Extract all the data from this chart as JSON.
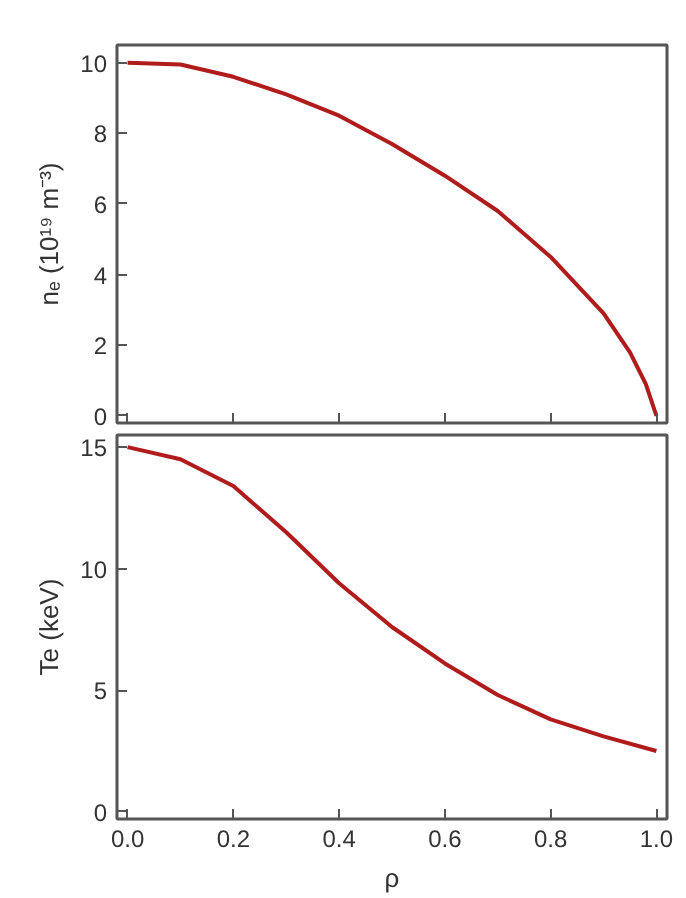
{
  "chart_data": [
    {
      "type": "line",
      "ylabel": "nₑ (10¹⁹ m⁻³)",
      "x": [
        0,
        0.1,
        0.2,
        0.3,
        0.4,
        0.5,
        0.6,
        0.7,
        0.8,
        0.9,
        0.95,
        0.98,
        1.0
      ],
      "series": [
        {
          "color": "#b01c1c",
          "values": [
            10,
            9.95,
            9.6,
            9.1,
            8.5,
            7.7,
            6.8,
            5.8,
            4.5,
            2.9,
            1.8,
            0.9,
            0
          ]
        }
      ],
      "xlim": [
        -0.02,
        1.02
      ],
      "xticks": [
        0,
        0.2,
        0.4,
        0.6,
        0.8,
        1.0
      ],
      "ylim": [
        -0.2,
        10.5
      ],
      "yticks": [
        0,
        2,
        4,
        6,
        8,
        10
      ],
      "tick_labels": "y",
      "grid": false
    },
    {
      "type": "line",
      "xlabel": "ρ",
      "ylabel": "Te (keV)",
      "x": [
        0,
        0.1,
        0.2,
        0.3,
        0.4,
        0.5,
        0.6,
        0.7,
        0.8,
        0.9,
        1.0
      ],
      "series": [
        {
          "color": "#b01c1c",
          "values": [
            15,
            14.5,
            13.4,
            11.5,
            9.4,
            7.6,
            6.1,
            4.8,
            3.8,
            3.1,
            2.5
          ]
        }
      ],
      "xlim": [
        -0.02,
        1.02
      ],
      "xticks": [
        {
          "value": 0,
          "label": "0.0"
        },
        0.2,
        0.4,
        0.6,
        0.8,
        {
          "value": 1.0,
          "label": "1.0"
        }
      ],
      "ylim": [
        -0.3,
        15.5
      ],
      "yticks": [
        0,
        5,
        10,
        15
      ],
      "grid": false
    }
  ]
}
